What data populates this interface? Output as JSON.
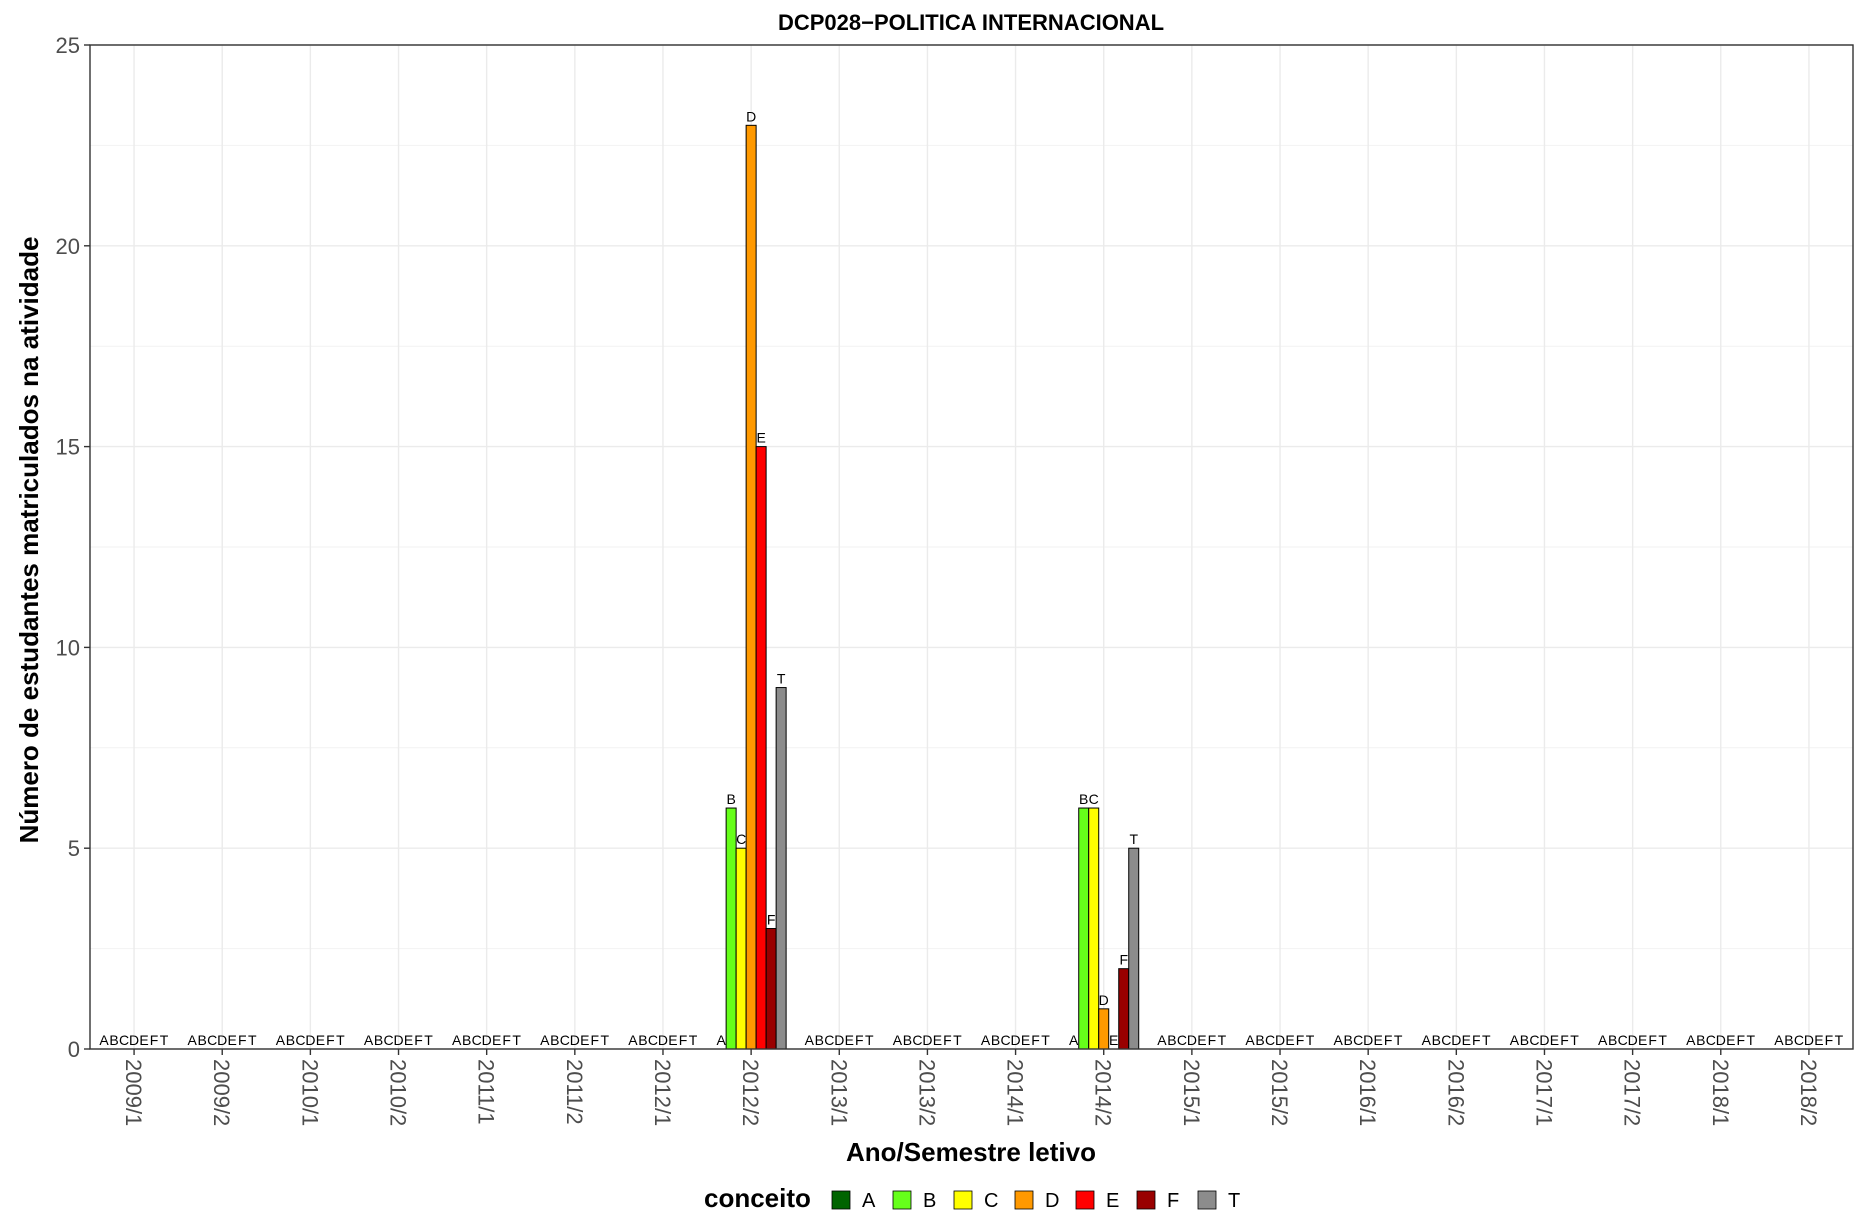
{
  "chart_data": {
    "type": "bar",
    "title": "DCP028−POLITICA INTERNACIONAL",
    "xlabel": "Ano/Semestre letivo",
    "ylabel": "Número de estudantes matriculados na atividade",
    "ylim": [
      0,
      25
    ],
    "yticks": [
      0,
      5,
      10,
      15,
      20,
      25
    ],
    "grid": true,
    "legend_position": "bottom",
    "legend_title": "conceito",
    "categories": [
      "2009/1",
      "2009/2",
      "2010/1",
      "2010/2",
      "2011/1",
      "2011/2",
      "2012/1",
      "2012/2",
      "2013/1",
      "2013/2",
      "2014/1",
      "2014/2",
      "2015/1",
      "2015/2",
      "2016/1",
      "2016/2",
      "2017/1",
      "2017/2",
      "2018/1",
      "2018/2"
    ],
    "series": [
      {
        "name": "A",
        "color": "#006400",
        "values": [
          0,
          0,
          0,
          0,
          0,
          0,
          0,
          0,
          0,
          0,
          0,
          0,
          0,
          0,
          0,
          0,
          0,
          0,
          0,
          0
        ]
      },
      {
        "name": "B",
        "color": "#66ff1a",
        "values": [
          0,
          0,
          0,
          0,
          0,
          0,
          0,
          6,
          0,
          0,
          0,
          6,
          0,
          0,
          0,
          0,
          0,
          0,
          0,
          0
        ]
      },
      {
        "name": "C",
        "color": "#ffff00",
        "values": [
          0,
          0,
          0,
          0,
          0,
          0,
          0,
          5,
          0,
          0,
          0,
          6,
          0,
          0,
          0,
          0,
          0,
          0,
          0,
          0
        ]
      },
      {
        "name": "D",
        "color": "#ff9900",
        "values": [
          0,
          0,
          0,
          0,
          0,
          0,
          0,
          23,
          0,
          0,
          0,
          1,
          0,
          0,
          0,
          0,
          0,
          0,
          0,
          0
        ]
      },
      {
        "name": "E",
        "color": "#ff0000",
        "values": [
          0,
          0,
          0,
          0,
          0,
          0,
          0,
          15,
          0,
          0,
          0,
          0,
          0,
          0,
          0,
          0,
          0,
          0,
          0,
          0
        ]
      },
      {
        "name": "F",
        "color": "#990000",
        "values": [
          0,
          0,
          0,
          0,
          0,
          0,
          0,
          3,
          0,
          0,
          0,
          2,
          0,
          0,
          0,
          0,
          0,
          0,
          0,
          0
        ]
      },
      {
        "name": "T",
        "color": "#8c8c8c",
        "values": [
          0,
          0,
          0,
          0,
          0,
          0,
          0,
          9,
          0,
          0,
          0,
          5,
          0,
          0,
          0,
          0,
          0,
          0,
          0,
          0
        ]
      }
    ]
  }
}
